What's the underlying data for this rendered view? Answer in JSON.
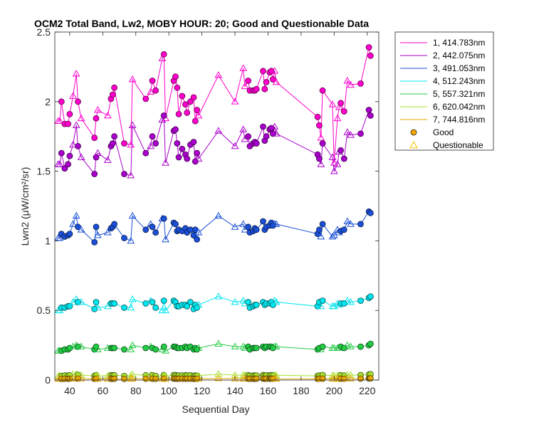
{
  "chart_data": {
    "type": "line",
    "title": "OCM2 Total Band, Lw2, MOBY HOUR: 20;  Good and Questionable Data",
    "xlabel": "Sequential Day",
    "ylabel": "Lwn2 (μW/cm²/sr)",
    "xlim": [
      31,
      227
    ],
    "ylim": [
      0,
      2.5
    ],
    "xticks": [
      40,
      60,
      80,
      100,
      120,
      140,
      160,
      180,
      200,
      220
    ],
    "yticks": [
      0,
      0.5,
      1,
      1.5,
      2,
      2.5
    ],
    "ytick_labels": [
      "0",
      "0.5",
      "1",
      "1.5",
      "2",
      "2.5"
    ],
    "grid": false,
    "legend_position": "outside-top-right",
    "x": [
      33,
      34,
      35,
      37,
      39,
      40,
      42,
      44,
      45,
      47,
      55,
      56,
      57,
      63,
      65,
      66,
      67,
      73,
      77,
      78,
      86,
      89,
      90,
      92,
      96,
      97,
      98,
      103,
      104,
      105,
      106,
      108,
      110,
      111,
      113,
      115,
      116,
      117,
      118,
      130,
      140,
      145,
      146,
      148,
      149,
      151,
      152,
      153,
      157,
      158,
      159,
      161,
      162,
      163,
      164,
      165,
      190,
      191,
      192,
      193,
      199,
      200,
      202,
      203,
      204,
      206,
      208,
      210,
      216,
      221,
      222
    ],
    "series": [
      {
        "name": "1, 414.783nm",
        "color": "#ff00cc",
        "values": [
          1.86,
          1.86,
          2.0,
          1.84,
          1.84,
          1.91,
          2.04,
          2.2,
          2.0,
          1.88,
          1.74,
          1.88,
          1.94,
          1.9,
          2.02,
          2.05,
          2.1,
          1.7,
          1.69,
          2.16,
          2.02,
          2.07,
          2.15,
          2.08,
          2.31,
          2.34,
          1.88,
          2.15,
          2.18,
          2.1,
          1.91,
          2.04,
          1.98,
          1.92,
          2.0,
          2.03,
          1.86,
          1.94,
          1.9,
          2.19,
          2.0,
          2.24,
          2.11,
          2.15,
          2.08,
          2.08,
          2.08,
          2.09,
          2.22,
          2.09,
          2.14,
          2.21,
          2.22,
          2.16,
          2.22,
          2.14,
          1.89,
          1.83,
          1.74,
          2.08,
          1.98,
          1.56,
          1.88,
          1.96,
          1.99,
          1.93,
          2.15,
          2.12,
          2.13,
          2.39,
          2.33
        ],
        "flags": [
          "q",
          "q",
          "g",
          "g",
          "g",
          "g",
          "q",
          "q",
          "g",
          "q",
          "g",
          "g",
          "q",
          "q",
          "g",
          "g",
          "g",
          "g",
          "q",
          "q",
          "g",
          "q",
          "g",
          "g",
          "q",
          "g",
          "q",
          "g",
          "g",
          "g",
          "g",
          "g",
          "g",
          "g",
          "g",
          "g",
          "g",
          "g",
          "q",
          "q",
          "q",
          "q",
          "q",
          "g",
          "g",
          "g",
          "g",
          "g",
          "g",
          "g",
          "g",
          "g",
          "g",
          "g",
          "q",
          "q",
          "g",
          "g",
          "q",
          "g",
          "q",
          "q",
          "q",
          "q",
          "g",
          "g",
          "q",
          "q",
          "g",
          "g",
          "g"
        ]
      },
      {
        "name": "2, 442.075nm",
        "color": "#aa00cc",
        "values": [
          1.55,
          1.55,
          1.63,
          1.52,
          1.55,
          1.61,
          1.69,
          1.83,
          1.68,
          1.6,
          1.48,
          1.6,
          1.63,
          1.58,
          1.68,
          1.7,
          1.75,
          1.48,
          1.47,
          1.83,
          1.63,
          1.68,
          1.75,
          1.7,
          1.87,
          1.9,
          1.56,
          1.79,
          1.8,
          1.7,
          1.6,
          1.66,
          1.62,
          1.59,
          1.69,
          1.71,
          1.57,
          1.63,
          1.59,
          1.79,
          1.68,
          1.8,
          1.73,
          1.75,
          1.68,
          1.7,
          1.71,
          1.7,
          1.82,
          1.72,
          1.75,
          1.8,
          1.81,
          1.77,
          1.82,
          1.77,
          1.62,
          1.59,
          1.55,
          1.7,
          1.6,
          1.5,
          1.55,
          1.64,
          1.65,
          1.59,
          1.78,
          1.76,
          1.77,
          1.94,
          1.9
        ],
        "flags": [
          "q",
          "q",
          "g",
          "g",
          "g",
          "g",
          "q",
          "q",
          "g",
          "q",
          "g",
          "g",
          "q",
          "q",
          "g",
          "g",
          "g",
          "g",
          "q",
          "q",
          "g",
          "q",
          "g",
          "g",
          "q",
          "g",
          "q",
          "g",
          "g",
          "g",
          "g",
          "g",
          "g",
          "g",
          "g",
          "g",
          "g",
          "g",
          "q",
          "q",
          "q",
          "q",
          "q",
          "g",
          "g",
          "g",
          "g",
          "g",
          "g",
          "g",
          "g",
          "g",
          "g",
          "g",
          "q",
          "q",
          "g",
          "g",
          "q",
          "g",
          "q",
          "q",
          "q",
          "q",
          "g",
          "g",
          "q",
          "q",
          "g",
          "g",
          "g"
        ]
      },
      {
        "name": "3, 491.053nm",
        "color": "#1a4fd6",
        "values": [
          1.02,
          1.02,
          1.05,
          1.03,
          1.04,
          1.05,
          1.12,
          1.18,
          1.1,
          1.08,
          0.99,
          1.1,
          1.04,
          1.06,
          1.09,
          1.1,
          1.12,
          1.02,
          1.0,
          1.18,
          1.08,
          1.12,
          1.1,
          1.06,
          1.16,
          1.16,
          1.01,
          1.13,
          1.12,
          1.07,
          1.08,
          1.07,
          1.09,
          1.06,
          1.08,
          1.04,
          1.08,
          1.01,
          1.06,
          1.18,
          1.1,
          1.12,
          1.08,
          1.1,
          1.06,
          1.07,
          1.09,
          1.08,
          1.14,
          1.08,
          1.1,
          1.11,
          1.13,
          1.11,
          1.12,
          1.12,
          1.05,
          1.08,
          1.03,
          1.12,
          1.03,
          1.04,
          1.08,
          1.06,
          1.07,
          1.08,
          1.14,
          1.12,
          1.12,
          1.21,
          1.2
        ],
        "flags": [
          "q",
          "q",
          "g",
          "g",
          "g",
          "g",
          "q",
          "q",
          "g",
          "q",
          "g",
          "g",
          "q",
          "q",
          "g",
          "g",
          "g",
          "g",
          "q",
          "q",
          "g",
          "q",
          "g",
          "g",
          "q",
          "g",
          "q",
          "g",
          "g",
          "g",
          "g",
          "g",
          "g",
          "g",
          "g",
          "g",
          "g",
          "g",
          "q",
          "q",
          "q",
          "q",
          "q",
          "g",
          "g",
          "g",
          "g",
          "g",
          "g",
          "g",
          "g",
          "g",
          "g",
          "g",
          "q",
          "q",
          "g",
          "g",
          "q",
          "g",
          "q",
          "q",
          "q",
          "q",
          "g",
          "g",
          "q",
          "q",
          "g",
          "g",
          "g"
        ]
      },
      {
        "name": "4, 512.243nm",
        "color": "#00e5ee",
        "values": [
          0.5,
          0.5,
          0.52,
          0.52,
          0.53,
          0.53,
          0.56,
          0.58,
          0.56,
          0.56,
          0.51,
          0.56,
          0.52,
          0.53,
          0.55,
          0.55,
          0.55,
          0.52,
          0.52,
          0.58,
          0.55,
          0.57,
          0.56,
          0.52,
          0.5,
          0.57,
          0.5,
          0.57,
          0.56,
          0.53,
          0.53,
          0.54,
          0.54,
          0.53,
          0.56,
          0.51,
          0.54,
          0.52,
          0.54,
          0.6,
          0.56,
          0.57,
          0.55,
          0.56,
          0.52,
          0.53,
          0.54,
          0.54,
          0.56,
          0.54,
          0.55,
          0.55,
          0.56,
          0.54,
          0.57,
          0.56,
          0.53,
          0.56,
          0.53,
          0.57,
          0.53,
          0.53,
          0.55,
          0.54,
          0.55,
          0.55,
          0.57,
          0.56,
          0.57,
          0.59,
          0.6
        ],
        "flags": [
          "q",
          "q",
          "g",
          "g",
          "g",
          "g",
          "q",
          "q",
          "g",
          "q",
          "g",
          "g",
          "q",
          "q",
          "g",
          "g",
          "g",
          "g",
          "q",
          "q",
          "g",
          "q",
          "g",
          "g",
          "q",
          "g",
          "q",
          "g",
          "g",
          "g",
          "g",
          "g",
          "g",
          "g",
          "g",
          "g",
          "g",
          "g",
          "q",
          "q",
          "q",
          "q",
          "q",
          "g",
          "g",
          "g",
          "g",
          "g",
          "g",
          "g",
          "g",
          "g",
          "g",
          "g",
          "q",
          "q",
          "g",
          "g",
          "q",
          "g",
          "q",
          "q",
          "q",
          "q",
          "g",
          "g",
          "q",
          "q",
          "g",
          "g",
          "g"
        ]
      },
      {
        "name": "5, 557.321nm",
        "color": "#22cc44",
        "values": [
          0.21,
          0.21,
          0.21,
          0.22,
          0.22,
          0.23,
          0.24,
          0.25,
          0.24,
          0.24,
          0.22,
          0.24,
          0.22,
          0.23,
          0.23,
          0.23,
          0.23,
          0.22,
          0.22,
          0.25,
          0.23,
          0.24,
          0.23,
          0.22,
          0.22,
          0.24,
          0.21,
          0.24,
          0.24,
          0.23,
          0.23,
          0.23,
          0.24,
          0.23,
          0.24,
          0.22,
          0.23,
          0.22,
          0.23,
          0.26,
          0.24,
          0.24,
          0.23,
          0.24,
          0.22,
          0.23,
          0.23,
          0.23,
          0.24,
          0.23,
          0.24,
          0.24,
          0.24,
          0.23,
          0.24,
          0.24,
          0.22,
          0.23,
          0.22,
          0.24,
          0.23,
          0.23,
          0.23,
          0.23,
          0.24,
          0.23,
          0.25,
          0.24,
          0.24,
          0.25,
          0.26
        ],
        "flags": [
          "q",
          "q",
          "g",
          "g",
          "g",
          "g",
          "q",
          "q",
          "g",
          "q",
          "g",
          "g",
          "q",
          "q",
          "g",
          "g",
          "g",
          "g",
          "q",
          "q",
          "g",
          "q",
          "g",
          "g",
          "q",
          "g",
          "q",
          "g",
          "g",
          "g",
          "g",
          "g",
          "g",
          "g",
          "g",
          "g",
          "g",
          "g",
          "q",
          "q",
          "q",
          "q",
          "q",
          "g",
          "g",
          "g",
          "g",
          "g",
          "g",
          "g",
          "g",
          "g",
          "g",
          "g",
          "q",
          "q",
          "g",
          "g",
          "q",
          "g",
          "q",
          "q",
          "q",
          "q",
          "g",
          "g",
          "q",
          "q",
          "g",
          "g",
          "g"
        ]
      },
      {
        "name": "6, 620.042nm",
        "color": "#a6e22e",
        "values": [
          0.028,
          0.03,
          0.03,
          0.032,
          0.032,
          0.034,
          0.04,
          0.042,
          0.038,
          0.036,
          0.03,
          0.036,
          0.03,
          0.032,
          0.034,
          0.034,
          0.034,
          0.03,
          0.03,
          0.04,
          0.034,
          0.036,
          0.034,
          0.03,
          0.03,
          0.036,
          0.028,
          0.036,
          0.036,
          0.032,
          0.032,
          0.032,
          0.034,
          0.032,
          0.034,
          0.03,
          0.032,
          0.03,
          0.032,
          0.042,
          0.036,
          0.036,
          0.034,
          0.036,
          0.03,
          0.032,
          0.032,
          0.032,
          0.036,
          0.032,
          0.034,
          0.034,
          0.036,
          0.032,
          0.036,
          0.034,
          0.03,
          0.032,
          0.03,
          0.036,
          0.032,
          0.032,
          0.032,
          0.032,
          0.034,
          0.032,
          0.038,
          0.036,
          0.036,
          0.04,
          0.042
        ],
        "flags": [
          "q",
          "q",
          "g",
          "g",
          "g",
          "g",
          "q",
          "q",
          "g",
          "q",
          "g",
          "g",
          "q",
          "q",
          "g",
          "g",
          "g",
          "g",
          "q",
          "q",
          "g",
          "q",
          "g",
          "g",
          "q",
          "g",
          "q",
          "g",
          "g",
          "g",
          "g",
          "g",
          "g",
          "g",
          "g",
          "g",
          "g",
          "g",
          "q",
          "q",
          "q",
          "q",
          "q",
          "g",
          "g",
          "g",
          "g",
          "g",
          "g",
          "g",
          "g",
          "g",
          "g",
          "g",
          "q",
          "q",
          "g",
          "g",
          "q",
          "g",
          "q",
          "q",
          "q",
          "q",
          "g",
          "g",
          "q",
          "q",
          "g",
          "g",
          "g"
        ]
      },
      {
        "name": "7, 744.816nm",
        "color": "#e6a800",
        "values": [
          0.008,
          0.008,
          0.008,
          0.009,
          0.009,
          0.009,
          0.01,
          0.011,
          0.01,
          0.01,
          0.008,
          0.01,
          0.008,
          0.009,
          0.009,
          0.009,
          0.009,
          0.008,
          0.008,
          0.011,
          0.009,
          0.01,
          0.009,
          0.008,
          0.008,
          0.01,
          0.008,
          0.01,
          0.01,
          0.009,
          0.009,
          0.009,
          0.009,
          0.009,
          0.009,
          0.008,
          0.009,
          0.008,
          0.009,
          0.012,
          0.01,
          0.01,
          0.009,
          0.01,
          0.008,
          0.009,
          0.009,
          0.009,
          0.01,
          0.009,
          0.009,
          0.009,
          0.01,
          0.009,
          0.01,
          0.009,
          0.008,
          0.009,
          0.008,
          0.01,
          0.009,
          0.009,
          0.009,
          0.009,
          0.009,
          0.009,
          0.01,
          0.01,
          0.01,
          0.011,
          0.012
        ],
        "flags": [
          "q",
          "q",
          "g",
          "g",
          "g",
          "g",
          "q",
          "q",
          "g",
          "q",
          "g",
          "g",
          "q",
          "q",
          "g",
          "g",
          "g",
          "g",
          "q",
          "q",
          "g",
          "q",
          "g",
          "g",
          "q",
          "g",
          "q",
          "g",
          "g",
          "g",
          "g",
          "g",
          "g",
          "g",
          "g",
          "g",
          "g",
          "g",
          "q",
          "q",
          "q",
          "q",
          "q",
          "g",
          "g",
          "g",
          "g",
          "g",
          "g",
          "g",
          "g",
          "g",
          "g",
          "g",
          "q",
          "q",
          "g",
          "g",
          "q",
          "g",
          "q",
          "q",
          "q",
          "q",
          "g",
          "g",
          "q",
          "q",
          "g",
          "g",
          "g"
        ]
      }
    ],
    "marker_legend": [
      {
        "label": "Good",
        "marker": "circle",
        "color": "#f5a800"
      },
      {
        "label": "Questionable",
        "marker": "triangle",
        "color": "#f5c400"
      }
    ]
  }
}
